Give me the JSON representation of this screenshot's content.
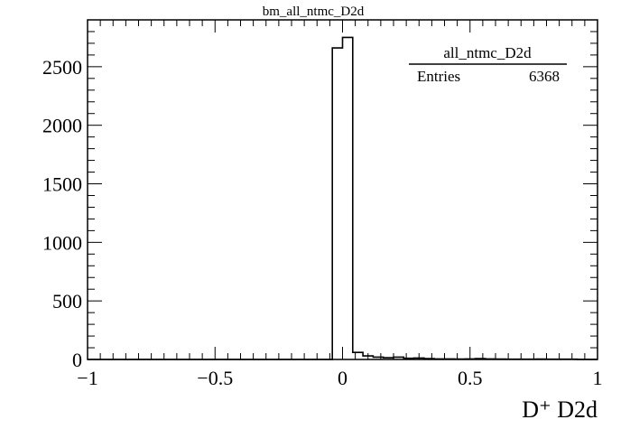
{
  "chart_data": {
    "type": "bar",
    "title": "bm_all_ntmc_D2d",
    "xlabel": "D⁺ D2d",
    "ylabel": "",
    "xlim": [
      -1,
      1
    ],
    "ylim": [
      0,
      2900
    ],
    "x_ticks": [
      -1,
      -0.5,
      0,
      0.5,
      1
    ],
    "x_tick_labels": [
      "−1",
      "−0.5",
      "0",
      "0.5",
      "1"
    ],
    "y_ticks": [
      0,
      500,
      1000,
      1500,
      2000,
      2500
    ],
    "y_tick_labels": [
      "0",
      "500",
      "1000",
      "1500",
      "2000",
      "2500"
    ],
    "grid": false,
    "bins": {
      "edges_start": -1,
      "bin_width": 0.04,
      "values": [
        0,
        0,
        0,
        0,
        0,
        0,
        0,
        0,
        0,
        0,
        0,
        0,
        0,
        0,
        0,
        0,
        0,
        0,
        0,
        0,
        0,
        0,
        0,
        0,
        2660,
        2750,
        60,
        30,
        20,
        15,
        20,
        10,
        12,
        8,
        5,
        5,
        3,
        5,
        8,
        5,
        3,
        2,
        2,
        2,
        3,
        2,
        2,
        2,
        1,
        1
      ]
    },
    "legend": {
      "position": "top-right",
      "name": "all_ntmc_D2d",
      "entries_label": "Entries",
      "entries_value": "6368"
    }
  }
}
